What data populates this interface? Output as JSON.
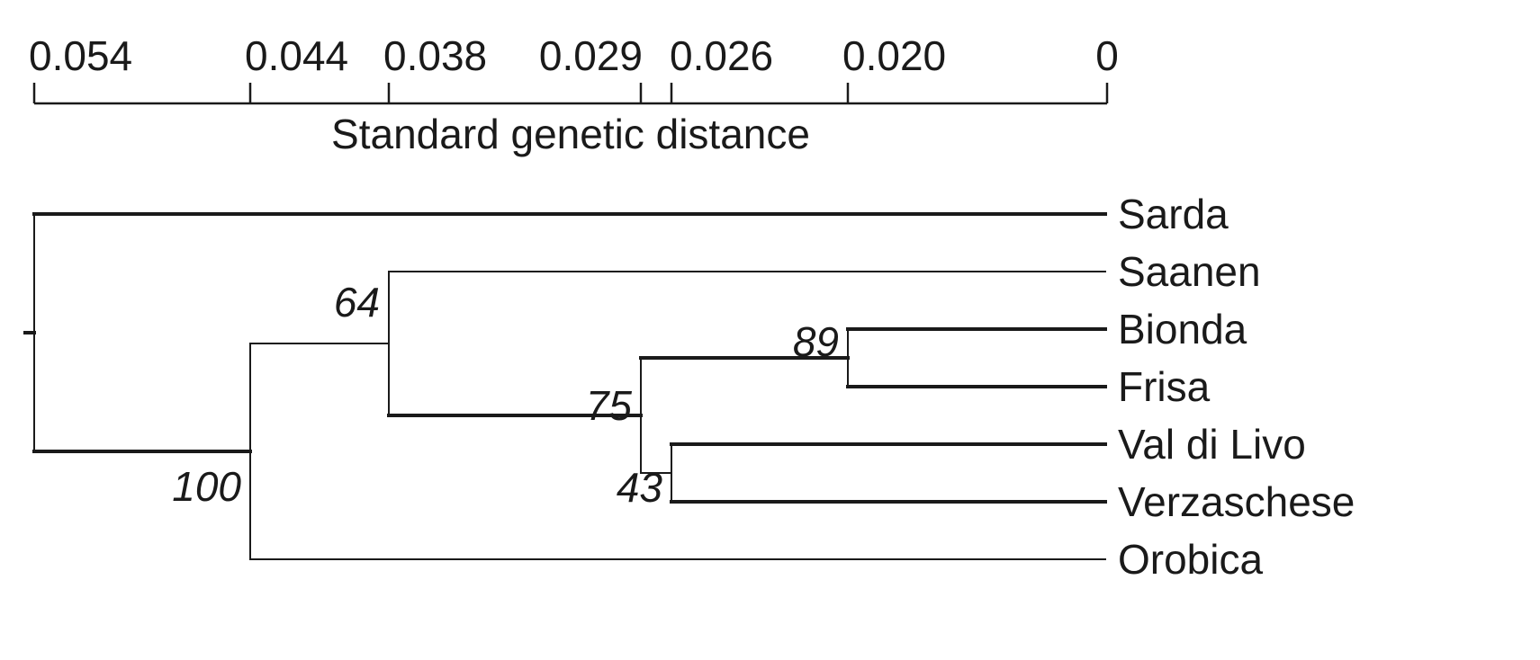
{
  "axis": {
    "title": "Standard genetic distance",
    "ticks": [
      {
        "value": 0.054,
        "label": "0.054"
      },
      {
        "value": 0.044,
        "label": "0.044"
      },
      {
        "value": 0.038,
        "label": "0.038"
      },
      {
        "value": 0.029,
        "label": "0.029"
      },
      {
        "value": 0.026,
        "label": "0.026"
      },
      {
        "value": 0.02,
        "label": "0.020"
      },
      {
        "value": 0,
        "label": "0"
      }
    ]
  },
  "taxa": [
    "Sarda",
    "Saanen",
    "Bionda",
    "Frisa",
    "Val di Livo",
    "Verzaschese",
    "Orobica"
  ],
  "nodes": [
    {
      "id": "root",
      "distance": 0.054,
      "children": [
        "Sarda",
        "n100"
      ]
    },
    {
      "id": "n100",
      "distance": 0.044,
      "support": "100",
      "children": [
        "n64",
        "Orobica"
      ]
    },
    {
      "id": "n64",
      "distance": 0.038,
      "support": "64",
      "children": [
        "Saanen",
        "n75"
      ]
    },
    {
      "id": "n75",
      "distance": 0.029,
      "support": "75",
      "children": [
        "n89",
        "n43"
      ]
    },
    {
      "id": "n43",
      "distance": 0.026,
      "support": "43",
      "children": [
        "Val di Livo",
        "Verzaschese"
      ]
    },
    {
      "id": "n89",
      "distance": 0.02,
      "support": "89",
      "children": [
        "Bionda",
        "Frisa"
      ]
    }
  ]
}
